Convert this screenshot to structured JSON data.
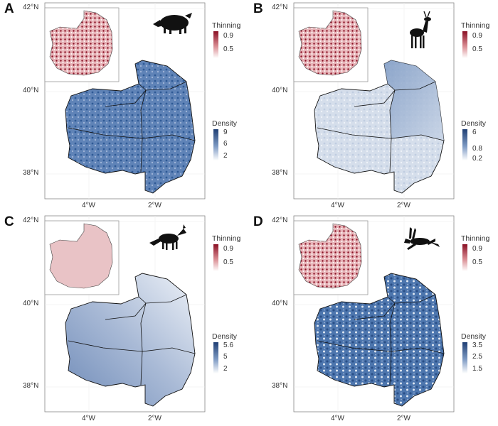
{
  "panels": [
    {
      "letter": "A",
      "animal_icon": "wild-boar-icon",
      "lat_labels": [
        "42°N",
        "40°N",
        "38°N"
      ],
      "lon_labels": [
        "4°W",
        "2°W"
      ],
      "thinning_legend": {
        "title": "Thinning",
        "ticks": [
          "0.9",
          "0.5"
        ]
      },
      "density_legend": {
        "title": "Density",
        "ticks": [
          "9",
          "6",
          "2"
        ]
      },
      "density_color": "#2f5a96"
    },
    {
      "letter": "B",
      "animal_icon": "roe-deer-icon",
      "lat_labels": [
        "42°N",
        "40°N",
        "38°N"
      ],
      "lon_labels": [
        "4°W",
        "2°W"
      ],
      "thinning_legend": {
        "title": "Thinning",
        "ticks": [
          "0.9",
          "0.5"
        ]
      },
      "density_legend": {
        "title": "Density",
        "ticks": [
          "6",
          "0.8",
          "0.2"
        ]
      },
      "density_color": "#b9c8dd"
    },
    {
      "letter": "C",
      "animal_icon": "fox-icon",
      "lat_labels": [
        "42°N",
        "40°N",
        "38°N"
      ],
      "lon_labels": [
        "4°W",
        "2°W"
      ],
      "thinning_legend": {
        "title": "Thinning",
        "ticks": [
          "0.9",
          "0.5"
        ]
      },
      "density_legend": {
        "title": "Density",
        "ticks": [
          "5.6",
          "5",
          "2"
        ]
      },
      "density_color": "#9fb1cf"
    },
    {
      "letter": "D",
      "animal_icon": "hare-icon",
      "lat_labels": [
        "42°N",
        "40°N",
        "38°N"
      ],
      "lon_labels": [
        "4°W",
        "2°W"
      ],
      "thinning_legend": {
        "title": "Thinning",
        "ticks": [
          "0.9",
          "0.5"
        ]
      },
      "density_legend": {
        "title": "Density",
        "ticks": [
          "3.5",
          "2.5",
          "1.5"
        ]
      },
      "density_color": "#3c6aa6"
    }
  ],
  "colors": {
    "thinning_high": "#8a0f24",
    "thinning_low": "#f3d4d6",
    "density_high": "#1f3f74",
    "density_low": "#ffffff"
  }
}
